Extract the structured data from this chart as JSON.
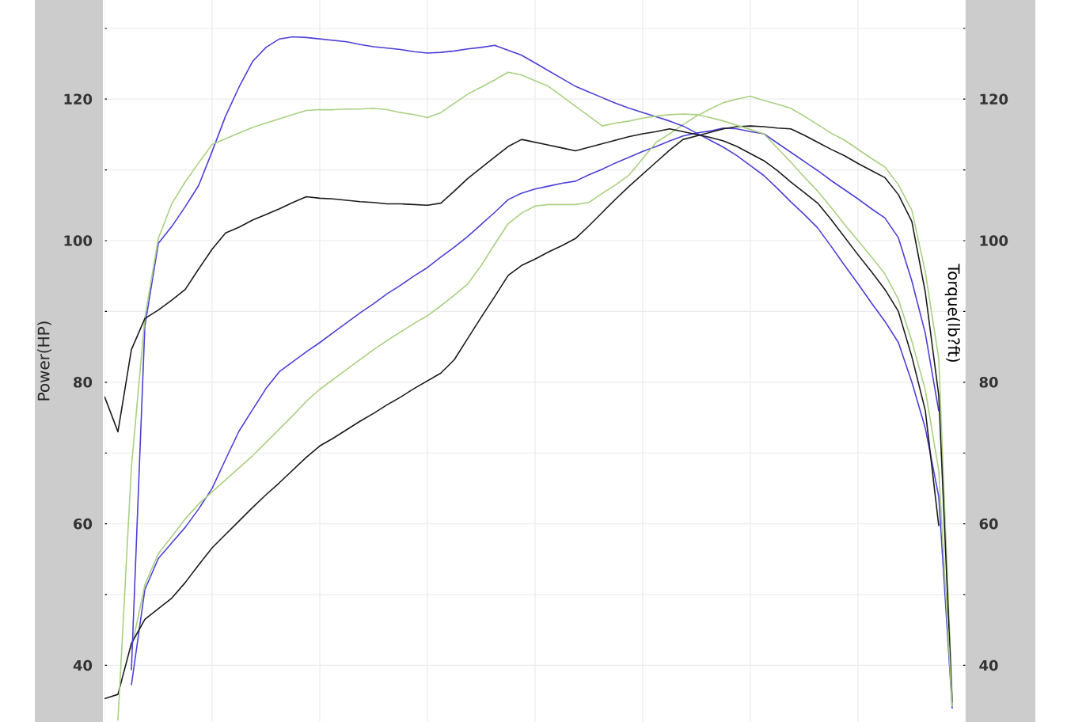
{
  "chart_data": {
    "type": "line",
    "ylabel": "Power(HP)",
    "y2label": "Torque(lb?ft)",
    "categories": [
      null,
      null,
      null,
      null,
      null,
      null,
      null,
      null,
      null,
      null,
      null,
      null,
      null,
      null,
      null,
      null,
      null,
      null,
      null,
      null,
      null,
      null,
      null,
      null,
      null,
      null,
      null,
      null,
      null,
      null,
      null,
      null,
      null,
      null,
      null,
      null,
      null,
      null,
      null,
      null,
      null,
      null,
      null,
      null,
      null,
      null,
      null,
      null,
      null,
      null,
      null,
      null,
      null,
      null,
      null,
      null,
      null,
      null,
      null,
      null,
      null,
      null,
      null,
      null,
      null
    ],
    "ylim": [
      32,
      134
    ],
    "yticks": [
      40,
      {
        "value": 50,
        "label": null
      },
      60,
      {
        "value": 70,
        "label": null
      },
      80,
      {
        "value": 90,
        "label": null
      },
      100,
      {
        "value": 110,
        "label": null
      },
      120,
      {
        "value": 130,
        "label": null
      }
    ],
    "y2lim": [
      32,
      134
    ],
    "y2ticks": [
      40,
      60,
      80,
      100,
      120
    ],
    "grid": true,
    "tick_labels": "y",
    "series": [
      {
        "color": "#4b3fd8",
        "axis": "y2",
        "values": [
          null,
          null,
          39.3,
          87.9,
          99.6,
          102.0,
          104.8,
          107.8,
          112.6,
          117.6,
          121.7,
          125.3,
          127.3,
          128.5,
          128.8,
          128.7,
          128.5,
          128.3,
          128.1,
          127.7,
          127.4,
          127.2,
          127.0,
          126.7,
          126.5,
          126.6,
          126.8,
          127.1,
          127.3,
          127.6,
          126.9,
          126.2,
          125.1,
          124.0,
          122.9,
          121.8,
          121.0,
          120.2,
          119.4,
          118.7,
          118.1,
          117.5,
          116.9,
          116.2,
          115.2,
          114.2,
          113.2,
          112.0,
          110.6,
          109.2,
          107.4,
          105.5,
          103.7,
          101.8,
          99.2,
          96.5,
          93.9,
          91.2,
          88.6,
          85.6,
          80.0,
          73.5,
          63.8,
          33.9,
          null
        ]
      },
      {
        "color": "#4b3fd8",
        "values": [
          null,
          null,
          37.2,
          50.7,
          55.1,
          57.3,
          59.5,
          62.1,
          65.0,
          69.1,
          73.1,
          76.1,
          79.1,
          81.5,
          82.9,
          84.3,
          85.6,
          87.0,
          88.4,
          89.8,
          91.1,
          92.5,
          93.7,
          95.0,
          96.2,
          97.7,
          99.1,
          100.6,
          102.3,
          104.0,
          105.8,
          106.7,
          107.3,
          107.7,
          108.1,
          108.4,
          109.3,
          110.1,
          111.0,
          111.8,
          112.6,
          113.3,
          114.1,
          114.8,
          115.2,
          115.5,
          115.9,
          115.8,
          115.4,
          115.1,
          113.8,
          112.5,
          111.2,
          109.9,
          108.5,
          107.2,
          105.9,
          104.5,
          103.2,
          100.4,
          94.3,
          86.9,
          75.9,
          null,
          null
        ]
      },
      {
        "color": "#a8d080",
        "axis": "y2",
        "values": [
          null,
          32.2,
          68.0,
          89.1,
          100.3,
          105.2,
          108.3,
          111.0,
          113.6,
          114.4,
          115.2,
          116.0,
          116.6,
          117.2,
          117.8,
          118.4,
          118.5,
          118.5,
          118.6,
          118.6,
          118.7,
          118.5,
          118.1,
          117.8,
          117.4,
          118.1,
          119.4,
          120.7,
          121.7,
          122.7,
          123.8,
          123.4,
          122.6,
          121.8,
          120.4,
          119.0,
          117.6,
          116.2,
          116.6,
          116.9,
          117.3,
          117.6,
          117.8,
          117.9,
          117.8,
          117.4,
          116.9,
          116.3,
          115.7,
          115.1,
          113.1,
          111.1,
          109.0,
          107.0,
          104.7,
          102.3,
          100.0,
          97.7,
          95.3,
          91.7,
          85.8,
          78.9,
          67.5,
          34.2,
          null
        ]
      },
      {
        "color": "#a8d080",
        "values": [
          null,
          null,
          42.3,
          51.4,
          55.8,
          58.2,
          60.7,
          62.8,
          64.5,
          66.2,
          67.9,
          69.6,
          71.5,
          73.4,
          75.3,
          77.3,
          79.0,
          80.4,
          81.8,
          83.2,
          84.6,
          85.9,
          87.1,
          88.3,
          89.4,
          90.8,
          92.3,
          93.9,
          96.5,
          99.5,
          102.4,
          103.9,
          104.9,
          105.1,
          105.1,
          105.1,
          105.4,
          106.7,
          107.9,
          109.3,
          111.6,
          113.9,
          115.1,
          116.4,
          117.6,
          118.6,
          119.5,
          120.0,
          120.4,
          119.8,
          119.3,
          118.7,
          117.6,
          116.4,
          115.2,
          114.2,
          112.9,
          111.6,
          110.4,
          107.9,
          104.3,
          95.6,
          83.3,
          35.2,
          null
        ]
      },
      {
        "color": "#1a1a1a",
        "axis": "y2",
        "values": [
          78.0,
          73.0,
          84.6,
          89.0,
          90.2,
          91.6,
          93.1,
          96.0,
          98.8,
          101.1,
          101.9,
          102.9,
          103.7,
          104.5,
          105.4,
          106.2,
          106.0,
          105.9,
          105.7,
          105.5,
          105.4,
          105.2,
          105.2,
          105.1,
          105.0,
          105.3,
          107.0,
          108.8,
          110.3,
          111.8,
          113.3,
          114.3,
          113.9,
          113.5,
          113.1,
          112.7,
          113.2,
          113.7,
          114.2,
          114.7,
          115.1,
          115.4,
          115.8,
          115.4,
          115.0,
          114.6,
          114.1,
          113.3,
          112.3,
          111.3,
          109.9,
          108.3,
          106.8,
          105.3,
          103.0,
          100.5,
          98.0,
          95.6,
          93.1,
          90.0,
          83.6,
          76.0,
          59.7,
          null,
          null
        ]
      },
      {
        "color": "#1a1a1a",
        "values": [
          35.3,
          35.9,
          43.1,
          46.5,
          48.0,
          49.5,
          51.7,
          54.2,
          56.6,
          58.5,
          60.4,
          62.3,
          64.1,
          65.8,
          67.6,
          69.4,
          71.0,
          72.1,
          73.3,
          74.5,
          75.6,
          76.8,
          77.9,
          79.1,
          80.2,
          81.3,
          83.2,
          86.2,
          89.2,
          92.1,
          95.1,
          96.5,
          97.4,
          98.4,
          99.3,
          100.3,
          102.1,
          104.0,
          105.9,
          107.7,
          109.4,
          111.1,
          112.8,
          114.3,
          114.8,
          115.3,
          115.8,
          116.1,
          116.2,
          116.1,
          115.9,
          115.8,
          114.9,
          113.9,
          112.9,
          112.0,
          110.9,
          109.9,
          108.9,
          106.5,
          102.7,
          92.7,
          78.1,
          34.7,
          null
        ]
      }
    ]
  }
}
